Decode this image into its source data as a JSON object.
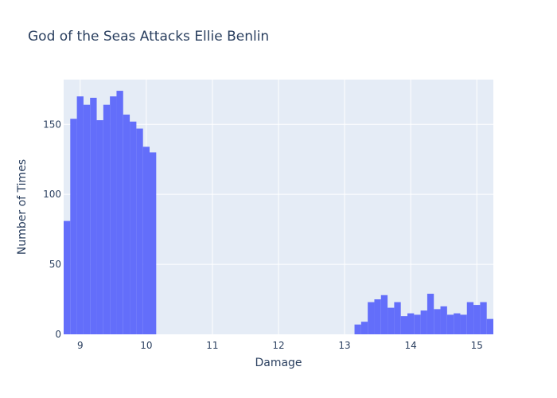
{
  "chart_data": {
    "type": "bar",
    "title": "God of the Seas Attacks Ellie Benlin",
    "xlabel": "Damage",
    "ylabel": "Number of Times",
    "xlim": [
      8.75,
      15.25
    ],
    "ylim": [
      0,
      182
    ],
    "bin_width": 0.1,
    "xticks": [
      9,
      10,
      11,
      12,
      13,
      14,
      15
    ],
    "yticks": [
      0,
      50,
      100,
      150
    ],
    "bar_color": "#636efa",
    "plot_bg": "#e5ecf6",
    "grid": true,
    "bins": [
      {
        "x0": 8.75,
        "value": 81
      },
      {
        "x0": 8.85,
        "value": 154
      },
      {
        "x0": 8.95,
        "value": 170
      },
      {
        "x0": 9.05,
        "value": 164
      },
      {
        "x0": 9.15,
        "value": 169
      },
      {
        "x0": 9.25,
        "value": 153
      },
      {
        "x0": 9.35,
        "value": 164
      },
      {
        "x0": 9.45,
        "value": 170
      },
      {
        "x0": 9.55,
        "value": 174
      },
      {
        "x0": 9.65,
        "value": 157
      },
      {
        "x0": 9.75,
        "value": 152
      },
      {
        "x0": 9.85,
        "value": 147
      },
      {
        "x0": 9.95,
        "value": 134
      },
      {
        "x0": 10.05,
        "value": 130
      },
      {
        "x0": 13.15,
        "value": 7
      },
      {
        "x0": 13.25,
        "value": 9
      },
      {
        "x0": 13.35,
        "value": 23
      },
      {
        "x0": 13.45,
        "value": 25
      },
      {
        "x0": 13.55,
        "value": 28
      },
      {
        "x0": 13.65,
        "value": 19
      },
      {
        "x0": 13.75,
        "value": 23
      },
      {
        "x0": 13.85,
        "value": 13
      },
      {
        "x0": 13.95,
        "value": 15
      },
      {
        "x0": 14.05,
        "value": 14
      },
      {
        "x0": 14.15,
        "value": 17
      },
      {
        "x0": 14.25,
        "value": 29
      },
      {
        "x0": 14.35,
        "value": 18
      },
      {
        "x0": 14.45,
        "value": 20
      },
      {
        "x0": 14.55,
        "value": 14
      },
      {
        "x0": 14.65,
        "value": 15
      },
      {
        "x0": 14.75,
        "value": 14
      },
      {
        "x0": 14.85,
        "value": 23
      },
      {
        "x0": 14.95,
        "value": 21
      },
      {
        "x0": 15.05,
        "value": 23
      },
      {
        "x0": 15.15,
        "value": 11
      }
    ]
  }
}
